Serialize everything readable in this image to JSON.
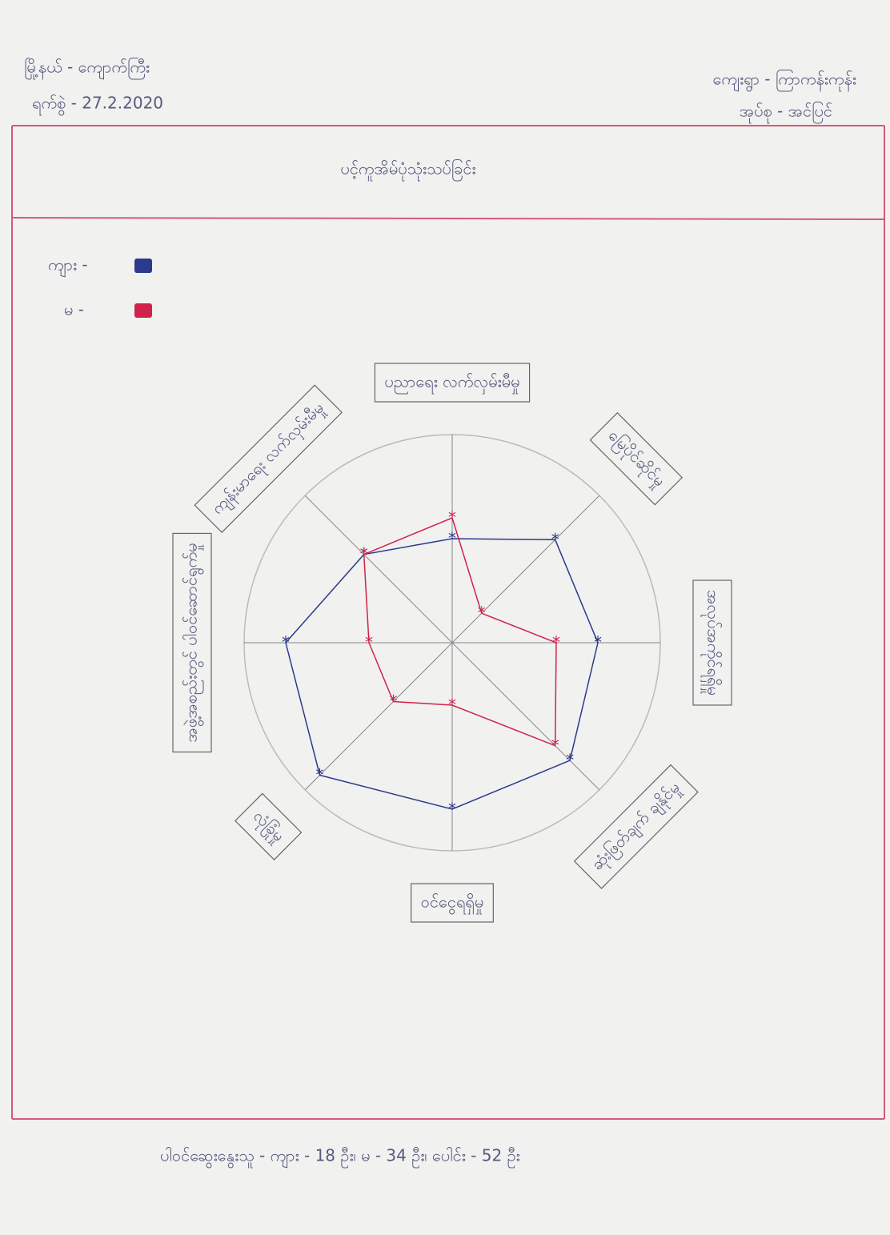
{
  "header": {
    "township": "မြို့နယ် - ကျောက်ကြီး",
    "date": "ရက်စွဲ - 27.2.2020",
    "village": "ကျေးရွာ - ကြာကန်းကုန်း",
    "tract": "အုပ်စု - အင်ပြင်"
  },
  "chart_data": {
    "type": "radar",
    "title": "ပင့်ကူအိမ်ပုံသုံးသပ်ခြင်း",
    "categories": [
      "ပညာရေး လက်လှမ်းမီမှု",
      "မြေပိုင်ဆိုင်မှု",
      "အလုပ်အကိုင်ရရှိမှု",
      "ဆုံးဖြတ်ချက် ချနိုင်မှု",
      "ဝင်ငွေရရှိမှု",
      "လုံခြုံမှု",
      "အဖွဲ့အစည်းတွင် ပါဝင်ဆောင်ရွက်မှု",
      "ကျန်းမာရေး လက်လှမ်းမီမှု"
    ],
    "series": [
      {
        "name": "ကျား -",
        "color": "#2b3a8c",
        "values": [
          5,
          7,
          7,
          8,
          8,
          9,
          8,
          6
        ]
      },
      {
        "name": "မ -",
        "color": "#d0224a",
        "values": [
          6,
          2,
          5,
          7,
          3,
          4,
          4,
          6
        ]
      }
    ],
    "rlim": [
      0,
      10
    ],
    "legend": "top-left"
  },
  "footer": "ပါဝင်ဆွေးနွေးသူ - ကျား - 18 ဦး၊ မ - 34 ဦး၊ ပေါင်း - 52 ဦး"
}
